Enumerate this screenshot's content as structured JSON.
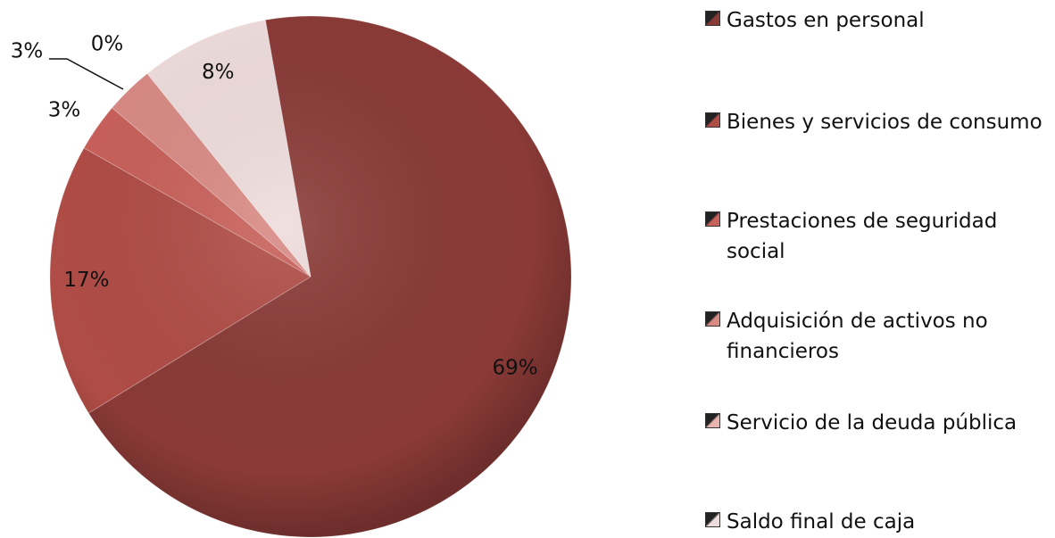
{
  "chart_data": {
    "type": "pie",
    "categories": [
      "Gastos en personal",
      "Bienes y servicios de consumo",
      "Prestaciones de seguridad social",
      "Adquisición de activos no financieros",
      "Servicio de la deuda pública",
      "Saldo final de caja"
    ],
    "values": [
      69,
      17,
      3,
      3,
      0,
      8
    ],
    "value_labels": [
      "69%",
      "17%",
      "3%",
      "3%",
      "0%",
      "8%"
    ],
    "colors": [
      "#8a3a37",
      "#b04c46",
      "#c9605a",
      "#d98a84",
      "#e8b4b0",
      "#eedcdc"
    ],
    "legend": "right"
  }
}
